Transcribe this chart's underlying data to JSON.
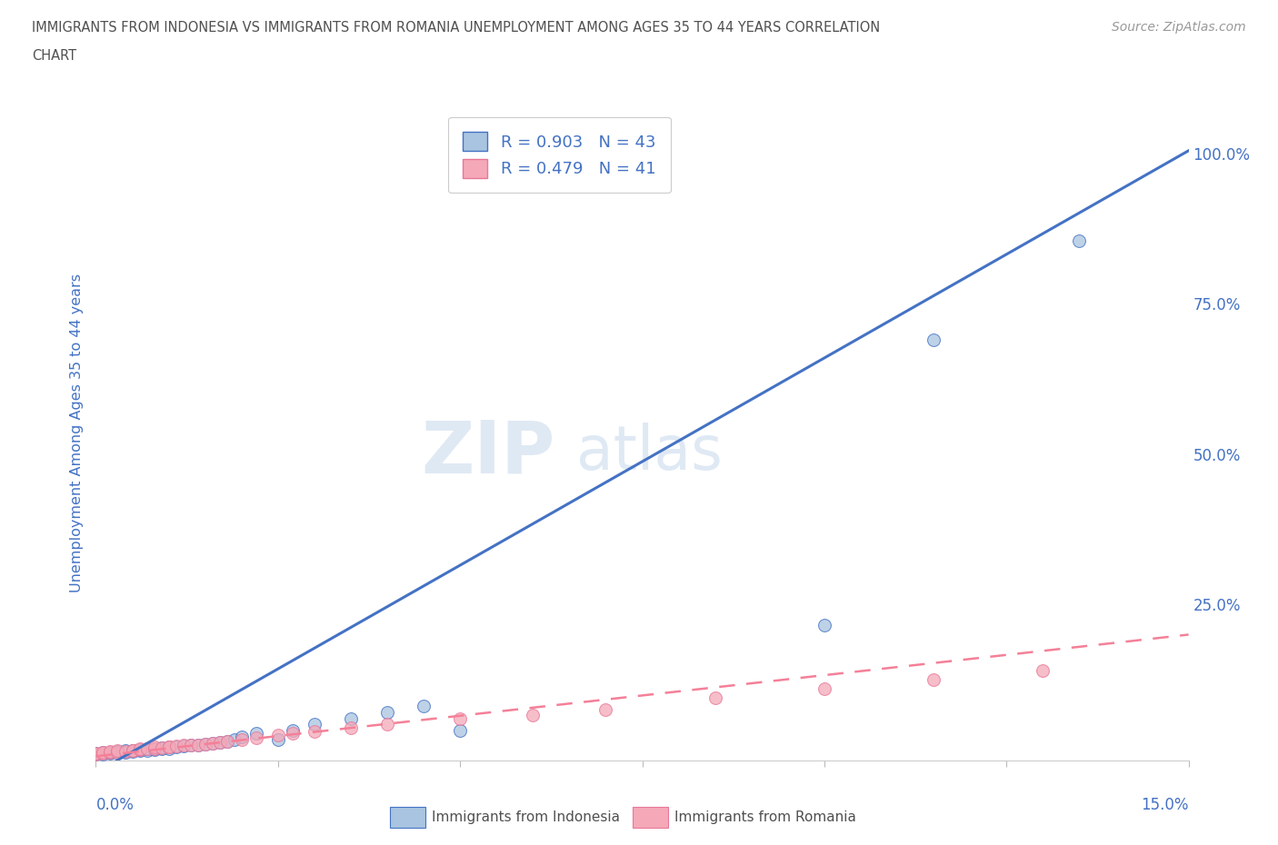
{
  "title_line1": "IMMIGRANTS FROM INDONESIA VS IMMIGRANTS FROM ROMANIA UNEMPLOYMENT AMONG AGES 35 TO 44 YEARS CORRELATION",
  "title_line2": "CHART",
  "source_text": "Source: ZipAtlas.com",
  "ylabel": "Unemployment Among Ages 35 to 44 years",
  "xlim": [
    0.0,
    0.15
  ],
  "ylim": [
    -0.01,
    1.08
  ],
  "yticks_right": [
    0.25,
    0.5,
    0.75,
    1.0
  ],
  "yticklabels_right": [
    "25.0%",
    "50.0%",
    "75.0%",
    "100.0%"
  ],
  "indonesia_color": "#a8c4e0",
  "romania_color": "#f4a8b8",
  "indonesia_edge_color": "#4472c4",
  "romania_edge_color": "#e87898",
  "indonesia_line_color": "#4472c4",
  "romania_line_color": "#f48098",
  "legend_R1": "R = 0.903",
  "legend_N1": "N = 43",
  "legend_R2": "R = 0.479",
  "legend_N2": "N = 41",
  "watermark_zip": "ZIP",
  "watermark_atlas": "atlas",
  "watermark_color_zip": "#c5d8ec",
  "watermark_color_atlas": "#c5d8ec",
  "indonesia_label": "Immigrants from Indonesia",
  "romania_label": "Immigrants from Romania",
  "background_color": "#ffffff",
  "grid_color": "#e0e8f0",
  "title_color": "#505050",
  "axis_color": "#4472c4",
  "indo_line_slope": 6.9,
  "indo_line_intercept": -0.03,
  "rom_line_slope": 1.35,
  "rom_line_intercept": -0.003,
  "indonesia_scatter_x": [
    0.0,
    0.0,
    0.001,
    0.001,
    0.002,
    0.002,
    0.003,
    0.003,
    0.004,
    0.004,
    0.005,
    0.005,
    0.006,
    0.006,
    0.007,
    0.007,
    0.008,
    0.008,
    0.009,
    0.009,
    0.01,
    0.01,
    0.011,
    0.012,
    0.013,
    0.014,
    0.015,
    0.016,
    0.017,
    0.018,
    0.019,
    0.02,
    0.022,
    0.025,
    0.027,
    0.03,
    0.035,
    0.04,
    0.045,
    0.05,
    0.1,
    0.115,
    0.135
  ],
  "indonesia_scatter_y": [
    0.0,
    0.002,
    0.001,
    0.003,
    0.002,
    0.004,
    0.003,
    0.005,
    0.004,
    0.006,
    0.005,
    0.007,
    0.006,
    0.008,
    0.007,
    0.009,
    0.008,
    0.01,
    0.009,
    0.011,
    0.01,
    0.012,
    0.013,
    0.014,
    0.015,
    0.016,
    0.017,
    0.018,
    0.02,
    0.022,
    0.025,
    0.03,
    0.035,
    0.025,
    0.04,
    0.05,
    0.06,
    0.07,
    0.08,
    0.04,
    0.215,
    0.69,
    0.855
  ],
  "romania_scatter_x": [
    0.0,
    0.0,
    0.001,
    0.001,
    0.002,
    0.002,
    0.003,
    0.003,
    0.004,
    0.005,
    0.005,
    0.006,
    0.006,
    0.007,
    0.008,
    0.008,
    0.009,
    0.01,
    0.01,
    0.011,
    0.012,
    0.013,
    0.014,
    0.015,
    0.016,
    0.017,
    0.018,
    0.02,
    0.022,
    0.025,
    0.027,
    0.03,
    0.035,
    0.04,
    0.05,
    0.06,
    0.07,
    0.085,
    0.1,
    0.115,
    0.13
  ],
  "romania_scatter_y": [
    0.0,
    0.002,
    0.002,
    0.004,
    0.003,
    0.005,
    0.004,
    0.006,
    0.005,
    0.006,
    0.007,
    0.008,
    0.009,
    0.01,
    0.01,
    0.012,
    0.011,
    0.012,
    0.013,
    0.014,
    0.015,
    0.015,
    0.016,
    0.017,
    0.018,
    0.02,
    0.022,
    0.025,
    0.028,
    0.032,
    0.035,
    0.038,
    0.045,
    0.05,
    0.06,
    0.065,
    0.075,
    0.095,
    0.11,
    0.125,
    0.14
  ]
}
